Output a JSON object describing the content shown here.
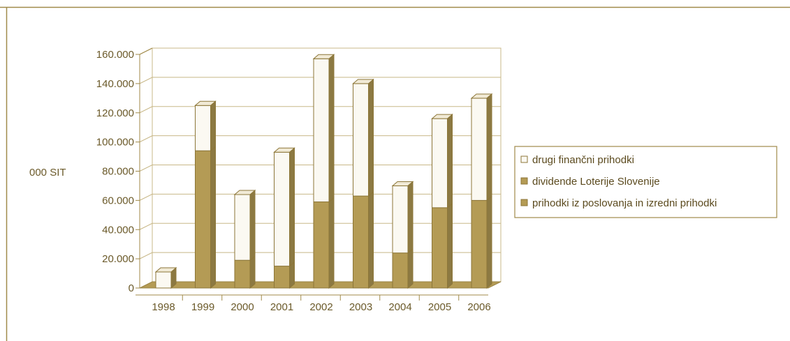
{
  "chart_data": {
    "type": "bar",
    "stacked": true,
    "three_d": true,
    "title": "",
    "xlabel": "",
    "ylabel": "000 SIT",
    "ylim": [
      0,
      160000
    ],
    "yticks": [
      0,
      20000,
      40000,
      60000,
      80000,
      100000,
      120000,
      140000,
      160000
    ],
    "ytick_labels": [
      "0",
      "20.000",
      "40.000",
      "60.000",
      "80.000",
      "100.000",
      "120.000",
      "140.000",
      "160.000"
    ],
    "categories": [
      "1998",
      "1999",
      "2000",
      "2001",
      "2002",
      "2003",
      "2004",
      "2005",
      "2006"
    ],
    "series": [
      {
        "name": "prihodki iz poslovanja in izredni prihodki",
        "values": [
          0,
          0,
          0,
          0,
          0,
          0,
          0,
          0,
          0
        ]
      },
      {
        "name": "dividende Loterije Slovenije",
        "values": [
          0,
          94000,
          19000,
          15000,
          59000,
          63000,
          24000,
          55000,
          60000
        ]
      },
      {
        "name": "drugi finančni prihodki",
        "values": [
          11000,
          31000,
          45000,
          78000,
          98000,
          77000,
          46000,
          61000,
          70000
        ]
      }
    ],
    "grid": true,
    "legend_position": "right",
    "colors": {
      "dividends": "#b49b55",
      "other_financial": "#fbf9f2",
      "operating": "#b49b55",
      "axis": "#a08a4a",
      "text": "#6b5a2a"
    }
  }
}
